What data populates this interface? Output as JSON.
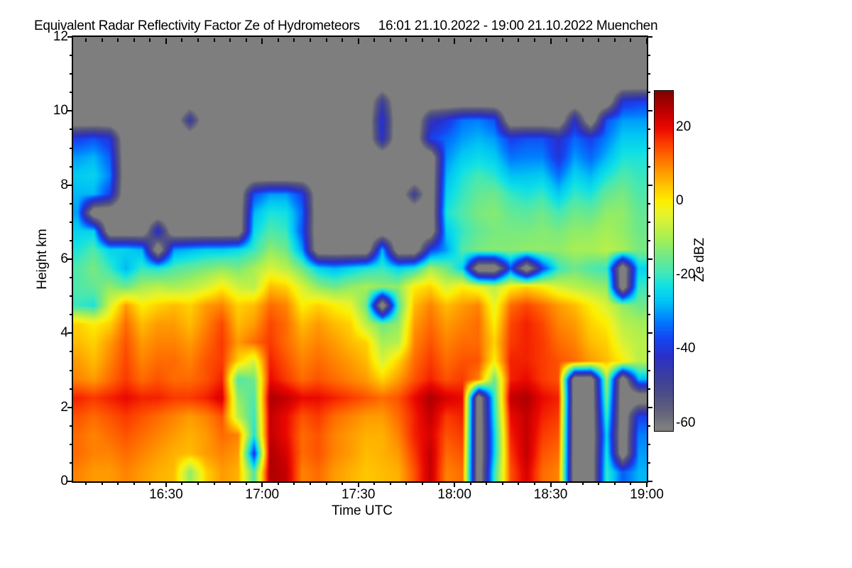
{
  "chart_data": {
    "type": "heatmap",
    "title": "Equivalent Radar Reflectivity Factor Ze of Hydrometeors",
    "date_range": "16:01 21.10.2022 - 19:00 21.10.2022 Muenchen",
    "xlabel": "Time UTC",
    "ylabel": "Height km",
    "colorbar_label": "Ze dBZ",
    "x_axis": {
      "start": "16:01",
      "end": "19:00",
      "tick_labels": [
        "16:30",
        "17:00",
        "17:30",
        "18:00",
        "18:30",
        "19:00"
      ],
      "tick_minutes_after_1600": [
        30,
        60,
        90,
        120,
        150,
        180
      ],
      "minor_step_minutes": 5,
      "total_minutes": 180
    },
    "y_axis": {
      "min_km": 0,
      "max_km": 12,
      "tick_labels": [
        "0",
        "2",
        "4",
        "6",
        "8",
        "10",
        "12"
      ],
      "tick_values": [
        0,
        2,
        4,
        6,
        8,
        10,
        12
      ],
      "minor_step_km": 0.5
    },
    "colorbar": {
      "vmax": 30,
      "vmin": -62,
      "tick_labels": [
        "20",
        "0",
        "-20",
        "-40",
        "-60"
      ],
      "tick_values": [
        20,
        0,
        -20,
        -40,
        -60
      ],
      "minor_step": 5,
      "no_echo_color": "#7e7e7e",
      "color_stops": [
        [
          -70,
          "#7e7e7e"
        ],
        [
          -61,
          "#7e7e7e"
        ],
        [
          -57,
          "#63637c"
        ],
        [
          -52,
          "#4c4c88"
        ],
        [
          -47,
          "#3a3da0"
        ],
        [
          -42,
          "#2b2fc8"
        ],
        [
          -37,
          "#1545f2"
        ],
        [
          -32,
          "#0080ff"
        ],
        [
          -27,
          "#00c4f4"
        ],
        [
          -23,
          "#0fe0e6"
        ],
        [
          -19,
          "#45e8b4"
        ],
        [
          -15,
          "#6fe88a"
        ],
        [
          -11,
          "#9bee5d"
        ],
        [
          -7,
          "#c3f143"
        ],
        [
          -3,
          "#e9f32a"
        ],
        [
          0,
          "#fcf000"
        ],
        [
          4,
          "#ffc700"
        ],
        [
          8,
          "#ff9b00"
        ],
        [
          12,
          "#ff6b00"
        ],
        [
          16,
          "#fb3a00"
        ],
        [
          20,
          "#ea0800"
        ],
        [
          24,
          "#c30000"
        ],
        [
          28,
          "#980000"
        ],
        [
          30,
          "#800000"
        ]
      ]
    },
    "grid": {
      "time_start": "16:00",
      "time_step_minutes": 5,
      "height_top_km": 12,
      "height_step_km": 0.5,
      "note": "rows top-to-bottom 12 km -> 0 km; 36 columns 16:00 -> 19:00; null = no echo (gray)",
      "values_dbz": [
        [
          null,
          null,
          null,
          null,
          null,
          null,
          null,
          null,
          null,
          null,
          null,
          null,
          null,
          null,
          null,
          null,
          null,
          null,
          null,
          null,
          null,
          null,
          null,
          null,
          null,
          null,
          null,
          null,
          null,
          null,
          null,
          null,
          null,
          null,
          null,
          null
        ],
        [
          null,
          null,
          null,
          null,
          null,
          null,
          null,
          null,
          null,
          null,
          null,
          null,
          null,
          null,
          null,
          null,
          null,
          null,
          null,
          null,
          null,
          null,
          null,
          null,
          null,
          null,
          null,
          null,
          null,
          null,
          null,
          null,
          null,
          null,
          null,
          null
        ],
        [
          null,
          null,
          null,
          null,
          null,
          null,
          null,
          null,
          null,
          null,
          null,
          null,
          null,
          null,
          null,
          null,
          null,
          null,
          null,
          null,
          null,
          null,
          null,
          null,
          null,
          null,
          null,
          null,
          null,
          null,
          null,
          null,
          null,
          null,
          null,
          null
        ],
        [
          null,
          null,
          null,
          null,
          null,
          null,
          null,
          null,
          null,
          null,
          null,
          null,
          null,
          null,
          null,
          null,
          null,
          null,
          null,
          -48,
          null,
          null,
          null,
          null,
          null,
          null,
          null,
          null,
          null,
          null,
          null,
          null,
          null,
          null,
          -40,
          -38
        ],
        [
          null,
          null,
          null,
          null,
          null,
          null,
          null,
          -46,
          null,
          null,
          null,
          null,
          null,
          null,
          null,
          null,
          null,
          null,
          null,
          -40,
          null,
          null,
          -45,
          -40,
          -33,
          -32,
          -36,
          null,
          null,
          null,
          null,
          -42,
          null,
          -36,
          -30,
          -30
        ],
        [
          -38,
          -36,
          -40,
          null,
          null,
          null,
          null,
          null,
          null,
          null,
          null,
          null,
          null,
          null,
          null,
          null,
          null,
          null,
          null,
          -42,
          null,
          null,
          -38,
          -34,
          -30,
          -28,
          -30,
          -38,
          -36,
          -36,
          -42,
          -34,
          -38,
          -32,
          -26,
          -26
        ],
        [
          -30,
          -28,
          -35,
          null,
          null,
          null,
          null,
          null,
          null,
          null,
          null,
          null,
          null,
          null,
          null,
          null,
          null,
          null,
          null,
          null,
          null,
          null,
          null,
          -31,
          -26,
          -24,
          -26,
          -33,
          -32,
          -32,
          -40,
          -30,
          -34,
          -28,
          -22,
          -22
        ],
        [
          -26,
          -25,
          -32,
          null,
          null,
          null,
          null,
          null,
          null,
          null,
          null,
          null,
          null,
          null,
          null,
          null,
          null,
          null,
          null,
          null,
          null,
          null,
          null,
          -28,
          -22,
          -19,
          -21,
          -27,
          -27,
          -26,
          -33,
          -25,
          -28,
          -22,
          -18,
          -20
        ],
        [
          -28,
          -28,
          -38,
          null,
          null,
          null,
          null,
          null,
          null,
          null,
          null,
          -36,
          -30,
          -30,
          -38,
          null,
          null,
          null,
          null,
          null,
          null,
          -48,
          null,
          -25,
          -20,
          -16,
          -15,
          -20,
          -22,
          -20,
          -26,
          -20,
          -22,
          -16,
          -14,
          -18
        ],
        [
          -30,
          null,
          null,
          null,
          null,
          null,
          null,
          null,
          null,
          null,
          null,
          -28,
          -22,
          -23,
          -34,
          null,
          null,
          null,
          null,
          null,
          null,
          null,
          null,
          -22,
          -18,
          -14,
          -13,
          -16,
          -17,
          -15,
          -19,
          -15,
          -16,
          -12,
          -12,
          -16
        ],
        [
          -25,
          -25,
          null,
          null,
          null,
          -40,
          null,
          null,
          null,
          null,
          null,
          -24,
          -18,
          -20,
          -36,
          null,
          null,
          null,
          null,
          null,
          null,
          null,
          null,
          -26,
          -20,
          -16,
          -14,
          -14,
          -14,
          -13,
          -14,
          -12,
          -12,
          -10,
          -12,
          -15
        ],
        [
          -22,
          -18,
          -25,
          -25,
          -28,
          null,
          -30,
          -28,
          -26,
          -26,
          -24,
          -20,
          -12,
          -15,
          -30,
          null,
          null,
          null,
          null,
          -28,
          null,
          null,
          -38,
          -30,
          -18,
          -14,
          -13,
          -13,
          -12,
          -12,
          -12,
          -10,
          -10,
          -8,
          -10,
          -14
        ],
        [
          -18,
          -14,
          -20,
          -28,
          -20,
          -22,
          -18,
          -16,
          -14,
          -12,
          -14,
          -10,
          -5,
          -8,
          -15,
          -25,
          -28,
          -25,
          -22,
          -20,
          -25,
          -22,
          -10,
          -15,
          -25,
          null,
          null,
          -36,
          null,
          -38,
          -20,
          -15,
          -18,
          -20,
          null,
          -25
        ],
        [
          -18,
          -16,
          -12,
          -15,
          -10,
          -8,
          -10,
          -8,
          -5,
          0,
          -6,
          -8,
          5,
          3,
          -5,
          -12,
          -15,
          -12,
          -10,
          -12,
          -12,
          0,
          3,
          -5,
          0,
          -3,
          -8,
          0,
          3,
          0,
          -5,
          -8,
          -10,
          -12,
          null,
          -20
        ],
        [
          -20,
          -22,
          -5,
          8,
          0,
          3,
          5,
          3,
          8,
          10,
          3,
          5,
          12,
          10,
          0,
          3,
          0,
          -3,
          -15,
          null,
          -18,
          5,
          10,
          5,
          8,
          10,
          -3,
          12,
          15,
          12,
          8,
          5,
          0,
          -5,
          -12,
          -15
        ],
        [
          3,
          0,
          3,
          12,
          5,
          8,
          8,
          5,
          10,
          15,
          5,
          8,
          15,
          12,
          5,
          8,
          5,
          3,
          -8,
          -15,
          -12,
          8,
          12,
          8,
          10,
          12,
          0,
          15,
          18,
          15,
          10,
          8,
          3,
          0,
          -8,
          -10
        ],
        [
          5,
          3,
          8,
          14,
          8,
          10,
          10,
          8,
          12,
          16,
          8,
          12,
          16,
          12,
          8,
          10,
          8,
          5,
          3,
          -10,
          -8,
          10,
          14,
          10,
          12,
          12,
          3,
          16,
          18,
          16,
          12,
          10,
          5,
          3,
          -5,
          -8
        ],
        [
          8,
          5,
          10,
          15,
          10,
          12,
          12,
          10,
          14,
          16,
          3,
          -5,
          18,
          14,
          10,
          12,
          10,
          8,
          5,
          -5,
          3,
          12,
          16,
          12,
          14,
          14,
          0,
          18,
          18,
          16,
          14,
          12,
          8,
          5,
          0,
          -8
        ],
        [
          10,
          8,
          12,
          16,
          12,
          14,
          12,
          12,
          14,
          18,
          -18,
          -15,
          20,
          16,
          12,
          14,
          12,
          10,
          8,
          3,
          8,
          14,
          18,
          14,
          16,
          10,
          -15,
          18,
          20,
          16,
          14,
          null,
          null,
          -10,
          null,
          -28
        ],
        [
          18,
          16,
          18,
          20,
          18,
          18,
          16,
          16,
          18,
          22,
          -12,
          -18,
          26,
          24,
          20,
          20,
          18,
          16,
          14,
          12,
          14,
          20,
          26,
          22,
          20,
          null,
          -20,
          24,
          26,
          20,
          18,
          null,
          null,
          -15,
          null,
          null
        ],
        [
          14,
          12,
          14,
          16,
          14,
          12,
          10,
          8,
          10,
          14,
          -8,
          -20,
          24,
          20,
          14,
          16,
          12,
          10,
          8,
          8,
          12,
          18,
          24,
          16,
          18,
          null,
          -22,
          20,
          24,
          18,
          16,
          null,
          null,
          -20,
          null,
          -38
        ],
        [
          12,
          10,
          12,
          14,
          12,
          10,
          8,
          6,
          8,
          12,
          10,
          -22,
          24,
          20,
          12,
          14,
          10,
          8,
          6,
          6,
          10,
          18,
          22,
          14,
          16,
          null,
          -25,
          18,
          24,
          16,
          14,
          null,
          null,
          -25,
          null,
          -32
        ],
        [
          12,
          10,
          10,
          12,
          10,
          8,
          6,
          5,
          8,
          10,
          8,
          -40,
          26,
          22,
          12,
          14,
          10,
          8,
          5,
          6,
          8,
          16,
          24,
          12,
          14,
          null,
          -25,
          16,
          24,
          14,
          12,
          null,
          null,
          -22,
          null,
          -30
        ],
        [
          10,
          8,
          8,
          10,
          8,
          6,
          5,
          -12,
          3,
          8,
          6,
          -18,
          26,
          24,
          10,
          12,
          8,
          6,
          4,
          5,
          6,
          14,
          24,
          10,
          12,
          null,
          -20,
          14,
          22,
          12,
          10,
          null,
          null,
          -20,
          -35,
          -28
        ]
      ]
    }
  }
}
